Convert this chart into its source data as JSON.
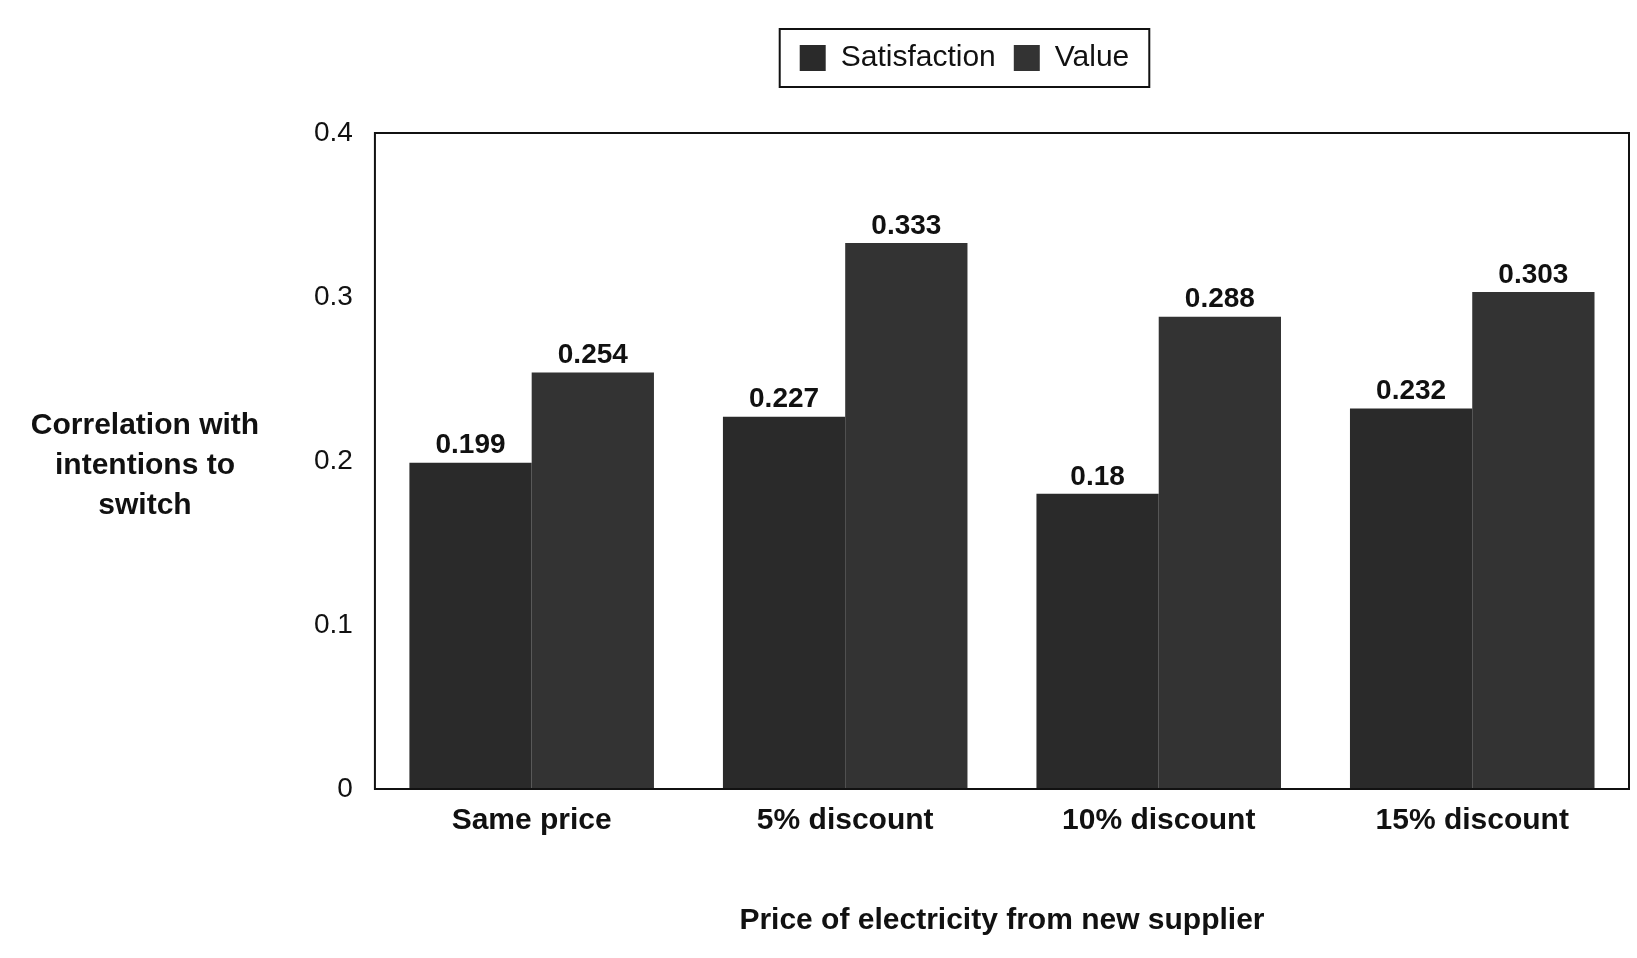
{
  "chart_data": {
    "type": "bar",
    "xlabel": "Price of electricity from new supplier",
    "ylabel": "Correlation with intentions to switch",
    "categories": [
      "Same price",
      "5% discount",
      "10% discount",
      "15% discount"
    ],
    "series": [
      {
        "name": "Satisfaction",
        "color": "#2a2a2a",
        "values": [
          0.199,
          0.227,
          0.18,
          0.232
        ]
      },
      {
        "name": "Value",
        "color": "#333333",
        "values": [
          0.254,
          0.333,
          0.288,
          0.303
        ]
      }
    ],
    "ylim": [
      0,
      0.4
    ],
    "yticks": [
      0,
      0.1,
      0.2,
      0.3,
      0.4
    ],
    "grid": false,
    "legend": "top",
    "data_labels": true
  }
}
